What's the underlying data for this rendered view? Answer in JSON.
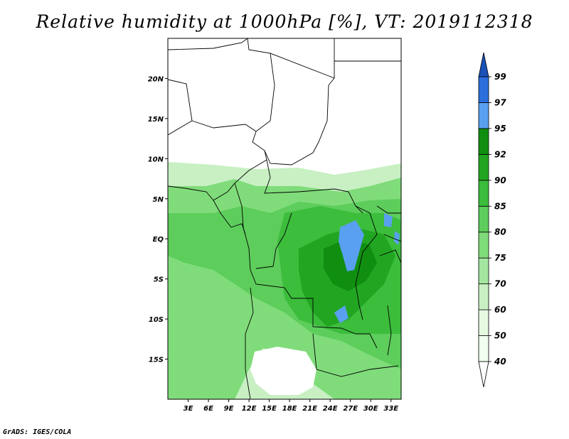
{
  "title": "Relative humidity at 1000hPa [%], VT: 2019112318",
  "footer": "GrADS: IGES/COLA",
  "map": {
    "lon_range": [
      0,
      34.5
    ],
    "lat_range": [
      -20,
      25
    ],
    "lon_ticks": [
      {
        "value": 3,
        "label": "3E"
      },
      {
        "value": 6,
        "label": "6E"
      },
      {
        "value": 9,
        "label": "9E"
      },
      {
        "value": 12,
        "label": "12E"
      },
      {
        "value": 15,
        "label": "15E"
      },
      {
        "value": 18,
        "label": "18E"
      },
      {
        "value": 21,
        "label": "21E"
      },
      {
        "value": 24,
        "label": "24E"
      },
      {
        "value": 27,
        "label": "27E"
      },
      {
        "value": 30,
        "label": "30E"
      },
      {
        "value": 33,
        "label": "33E"
      }
    ],
    "lat_ticks": [
      {
        "value": 20,
        "label": "20N"
      },
      {
        "value": 15,
        "label": "15N"
      },
      {
        "value": 10,
        "label": "10N"
      },
      {
        "value": 5,
        "label": "5N"
      },
      {
        "value": 0,
        "label": "EQ"
      },
      {
        "value": -5,
        "label": "5S"
      },
      {
        "value": -10,
        "label": "10S"
      },
      {
        "value": -15,
        "label": "15S"
      }
    ]
  },
  "colorbar": {
    "levels": [
      "40",
      "50",
      "60",
      "70",
      "75",
      "80",
      "85",
      "90",
      "92",
      "95",
      "97",
      "99"
    ],
    "colors": [
      "#f0fff0",
      "#e6f9e1",
      "#c8f0c3",
      "#a3e69f",
      "#80dc7a",
      "#5dcd5c",
      "#3cbd3c",
      "#22a622",
      "#108e10",
      "#5aa0f0",
      "#2b6fdd",
      "#1a52b8"
    ],
    "under_color": "#ffffff"
  }
}
